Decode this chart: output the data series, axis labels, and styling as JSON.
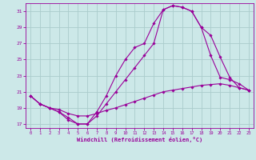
{
  "title": "",
  "xlabel": "Windchill (Refroidissement éolien,°C)",
  "background_color": "#cce8e8",
  "grid_color": "#aacccc",
  "line_color": "#990099",
  "xlim": [
    -0.5,
    23.5
  ],
  "ylim": [
    16.5,
    32.0
  ],
  "yticks": [
    17,
    19,
    21,
    23,
    25,
    27,
    29,
    31
  ],
  "xticks": [
    0,
    1,
    2,
    3,
    4,
    5,
    6,
    7,
    8,
    9,
    10,
    11,
    12,
    13,
    14,
    15,
    16,
    17,
    18,
    19,
    20,
    21,
    22,
    23
  ],
  "curve1_x": [
    0,
    1,
    2,
    3,
    4,
    5,
    6,
    7,
    8,
    9,
    10,
    11,
    12,
    13,
    14,
    15,
    16,
    17,
    18,
    19,
    20,
    21,
    22,
    23
  ],
  "curve1_y": [
    20.5,
    19.5,
    19.0,
    18.5,
    17.8,
    17.0,
    17.0,
    18.5,
    20.5,
    23.0,
    25.0,
    26.5,
    27.0,
    29.5,
    31.2,
    31.7,
    31.5,
    31.0,
    29.0,
    28.0,
    25.3,
    22.8,
    21.5,
    21.2
  ],
  "curve2_x": [
    0,
    1,
    2,
    3,
    4,
    5,
    6,
    7,
    8,
    9,
    10,
    11,
    12,
    13,
    14,
    15,
    16,
    17,
    18,
    19,
    20,
    21,
    22,
    23
  ],
  "curve2_y": [
    20.5,
    19.5,
    19.0,
    18.5,
    17.5,
    17.0,
    17.0,
    18.0,
    19.5,
    21.0,
    22.5,
    24.0,
    25.5,
    27.0,
    31.2,
    31.7,
    31.5,
    31.0,
    29.0,
    25.5,
    22.8,
    22.5,
    22.0,
    21.2
  ],
  "curve3_x": [
    0,
    1,
    2,
    3,
    4,
    5,
    6,
    7,
    8,
    9,
    10,
    11,
    12,
    13,
    14,
    15,
    16,
    17,
    18,
    19,
    20,
    21,
    22,
    23
  ],
  "curve3_y": [
    20.5,
    19.5,
    19.0,
    18.8,
    18.3,
    18.0,
    18.0,
    18.3,
    18.7,
    19.0,
    19.4,
    19.8,
    20.2,
    20.6,
    21.0,
    21.2,
    21.4,
    21.6,
    21.8,
    21.9,
    22.0,
    21.8,
    21.5,
    21.2
  ]
}
